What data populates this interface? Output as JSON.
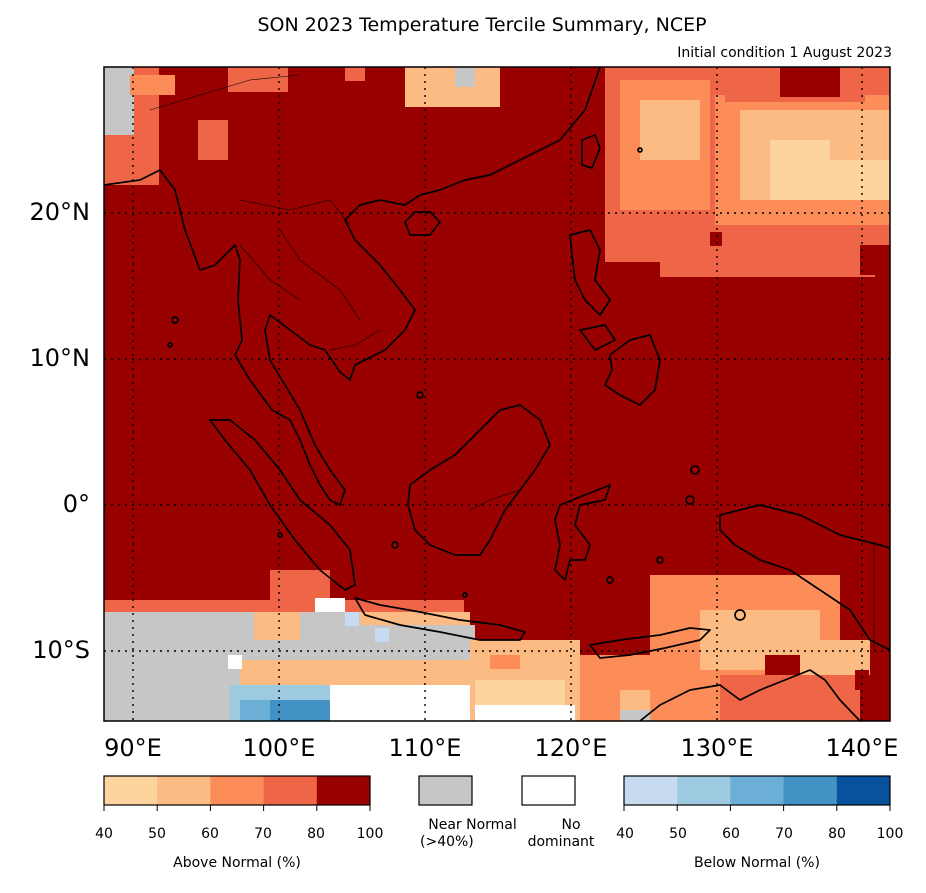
{
  "title": "SON 2023 Temperature Tercile Summary, NCEP",
  "subtitle": "Initial condition 1 August 2023",
  "lat_labels": [
    "20°N",
    "10°N",
    "0°",
    "10°S"
  ],
  "lon_labels": [
    "90°E",
    "100°E",
    "110°E",
    "120°E",
    "130°E",
    "140°E"
  ],
  "above_colorbar": {
    "ticks": [
      "40",
      "50",
      "60",
      "70",
      "80",
      "100"
    ],
    "title": "Above Normal (%)",
    "colors": [
      "#fdd49e",
      "#fdbb84",
      "#fc8d59",
      "#ef6548",
      "#990000"
    ]
  },
  "near_normal": {
    "label_line1": "Near Normal",
    "label_line2": "(>40%)",
    "color": "#c6c6c6"
  },
  "no_dominant": {
    "label_line1": "No",
    "label_line2": "dominant",
    "color": "#ffffff"
  },
  "below_colorbar": {
    "ticks": [
      "40",
      "50",
      "60",
      "70",
      "80",
      "100"
    ],
    "title": "Below Normal (%)",
    "colors": [
      "#c6dbef",
      "#9ecae1",
      "#6baed6",
      "#4292c6",
      "#08519c"
    ]
  },
  "map": {
    "dominant_color": "#990000",
    "lon_range": [
      87,
      141
    ],
    "lat_range": [
      -15,
      30
    ],
    "grid": "dotted"
  }
}
